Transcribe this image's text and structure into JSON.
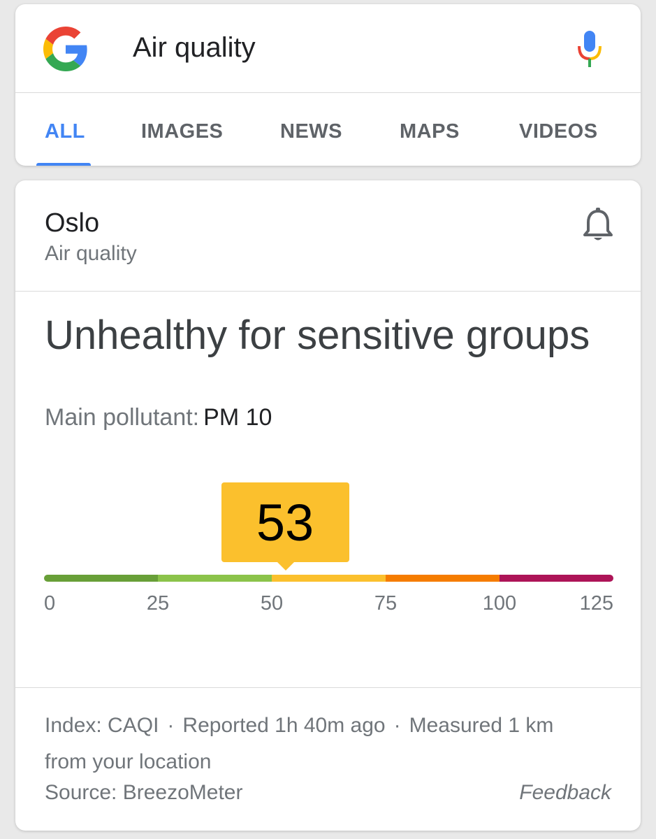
{
  "search": {
    "query": "Air quality",
    "tabs": [
      {
        "label": "ALL",
        "active": true
      },
      {
        "label": "IMAGES",
        "active": false
      },
      {
        "label": "NEWS",
        "active": false
      },
      {
        "label": "MAPS",
        "active": false
      },
      {
        "label": "VIDEOS",
        "active": false
      }
    ],
    "accent_color": "#4285f4",
    "icons": [
      "google-logo-icon",
      "microphone-icon"
    ]
  },
  "air_quality": {
    "city": "Oslo",
    "subtitle": "Air quality",
    "status": "Unhealthy for sensitive groups",
    "pollutant_label": "Main pollutant:",
    "pollutant_value": "PM 10",
    "index_value": "53",
    "scale": {
      "min": 0,
      "max": 125,
      "ticks": [
        "0",
        "25",
        "50",
        "75",
        "100",
        "125"
      ],
      "segment_colors": [
        "#689f38",
        "#8bc34a",
        "#fbc02d",
        "#f57c00",
        "#ad1457"
      ],
      "bubble_color": "#fbc02d"
    },
    "meta": {
      "index": "Index: CAQI",
      "reported": "Reported 1h 40m ago",
      "measured": "Measured 1 km from your location",
      "separator": "·"
    },
    "source": "Source: BreezoMeter",
    "feedback": "Feedback",
    "icons": [
      "bell-icon"
    ]
  }
}
